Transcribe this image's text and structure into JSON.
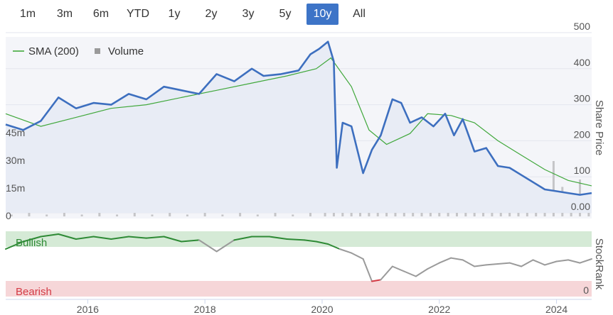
{
  "range_selector": {
    "buttons": [
      "1m",
      "3m",
      "6m",
      "YTD",
      "1y",
      "2y",
      "3y",
      "5y",
      "10y",
      "All"
    ],
    "active": "10y"
  },
  "colors": {
    "price_line": "#3d6fbf",
    "sma_line": "#41a83c",
    "volume_bar": "#c5c5c8",
    "bullish_band": "#d5ead6",
    "bearish_band": "#f6d6d8",
    "bullish_text": "#2e8a35",
    "bearish_text": "#d43b45",
    "active_button": "#3d74c7"
  },
  "chart_data": {
    "type": "line",
    "legend": {
      "sma_label": "SMA (200)",
      "volume_label": "Volume",
      "placement": "top-left"
    },
    "price_axis": {
      "label": "Share Price",
      "ticks": [
        "500",
        "400",
        "300",
        "200",
        "100",
        "0.00"
      ],
      "range": [
        0,
        500
      ],
      "position": "right"
    },
    "volume_axis": {
      "ticks": [
        "45m",
        "30m",
        "15m",
        "0"
      ],
      "range": [
        0,
        45
      ],
      "unit": "m",
      "position": "left"
    },
    "stockrank_axis": {
      "label": "StockRank",
      "ticks": [
        "0"
      ],
      "position": "right"
    },
    "x_axis": {
      "ticks": [
        "2016",
        "2018",
        "2020",
        "2022",
        "2024"
      ],
      "range": [
        2014.6,
        2024.6
      ]
    },
    "bands": {
      "bullish": "Bullish",
      "bearish": "Bearish"
    },
    "series": [
      {
        "name": "SMA (200)",
        "x": [
          2014.6,
          2015.2,
          2015.8,
          2016.4,
          2017.0,
          2017.6,
          2018.2,
          2018.8,
          2019.4,
          2019.9,
          2020.15,
          2020.5,
          2020.8,
          2021.1,
          2021.5,
          2021.8,
          2022.2,
          2022.6,
          2023.0,
          2023.4,
          2023.8,
          2024.2,
          2024.6
        ],
        "values": [
          275,
          240,
          265,
          290,
          300,
          320,
          340,
          360,
          380,
          400,
          430,
          350,
          230,
          190,
          220,
          275,
          270,
          250,
          200,
          160,
          120,
          90,
          75
        ]
      },
      {
        "name": "Share Price",
        "x": [
          2014.6,
          2014.9,
          2015.2,
          2015.5,
          2015.8,
          2016.1,
          2016.4,
          2016.7,
          2017.0,
          2017.3,
          2017.6,
          2017.9,
          2018.2,
          2018.5,
          2018.8,
          2019.0,
          2019.3,
          2019.6,
          2019.8,
          2019.95,
          2020.1,
          2020.2,
          2020.25,
          2020.35,
          2020.5,
          2020.7,
          2020.85,
          2021.0,
          2021.2,
          2021.35,
          2021.5,
          2021.7,
          2021.9,
          2022.1,
          2022.25,
          2022.4,
          2022.6,
          2022.8,
          2023.0,
          2023.2,
          2023.4,
          2023.6,
          2023.8,
          2024.0,
          2024.2,
          2024.4,
          2024.6
        ],
        "values": [
          245,
          230,
          255,
          320,
          290,
          305,
          300,
          330,
          315,
          350,
          340,
          330,
          385,
          365,
          400,
          380,
          385,
          395,
          440,
          455,
          475,
          420,
          125,
          250,
          240,
          110,
          175,
          215,
          315,
          305,
          250,
          265,
          240,
          275,
          215,
          260,
          170,
          180,
          130,
          125,
          105,
          85,
          65,
          60,
          55,
          50,
          55
        ]
      },
      {
        "name": "Volume",
        "x": [
          2014.7,
          2015.0,
          2015.3,
          2015.6,
          2015.9,
          2016.2,
          2016.5,
          2016.8,
          2017.1,
          2017.4,
          2017.7,
          2018.0,
          2018.3,
          2018.6,
          2018.9,
          2019.2,
          2019.5,
          2019.8,
          2020.05,
          2020.2,
          2020.35,
          2020.5,
          2020.65,
          2020.8,
          2020.95,
          2021.1,
          2021.25,
          2021.4,
          2021.55,
          2021.7,
          2021.85,
          2022.0,
          2022.15,
          2022.3,
          2022.45,
          2022.6,
          2022.75,
          2022.9,
          2023.05,
          2023.2,
          2023.35,
          2023.5,
          2023.65,
          2023.8,
          2023.95,
          2024.1,
          2024.25,
          2024.4,
          2024.55
        ],
        "values": [
          1,
          2,
          1,
          2,
          1,
          2,
          1,
          2,
          1,
          2,
          1,
          2,
          1,
          2,
          1,
          2,
          1,
          2,
          4,
          20,
          14,
          10,
          16,
          12,
          22,
          14,
          28,
          16,
          12,
          18,
          10,
          14,
          12,
          26,
          10,
          18,
          8,
          12,
          15,
          9,
          20,
          10,
          14,
          9,
          30,
          16,
          12,
          20,
          8
        ]
      },
      {
        "name": "StockRank",
        "x": [
          2014.6,
          2014.9,
          2015.2,
          2015.5,
          2015.8,
          2016.1,
          2016.4,
          2016.7,
          2017.0,
          2017.3,
          2017.6,
          2017.9,
          2018.2,
          2018.5,
          2018.8,
          2019.1,
          2019.4,
          2019.7,
          2019.9,
          2020.1,
          2020.3,
          2020.5,
          2020.7,
          2020.85,
          2021.0,
          2021.2,
          2021.4,
          2021.6,
          2021.8,
          2022.0,
          2022.2,
          2022.4,
          2022.6,
          2022.8,
          2023.0,
          2023.2,
          2023.4,
          2023.6,
          2023.8,
          2024.0,
          2024.2,
          2024.4,
          2024.6
        ],
        "values": [
          70,
          85,
          95,
          100,
          90,
          95,
          90,
          95,
          92,
          95,
          85,
          88,
          65,
          88,
          95,
          95,
          90,
          88,
          85,
          80,
          70,
          62,
          50,
          5,
          8,
          35,
          25,
          15,
          30,
          42,
          52,
          48,
          35,
          38,
          40,
          42,
          35,
          48,
          38,
          45,
          48,
          42,
          50
        ]
      }
    ]
  }
}
